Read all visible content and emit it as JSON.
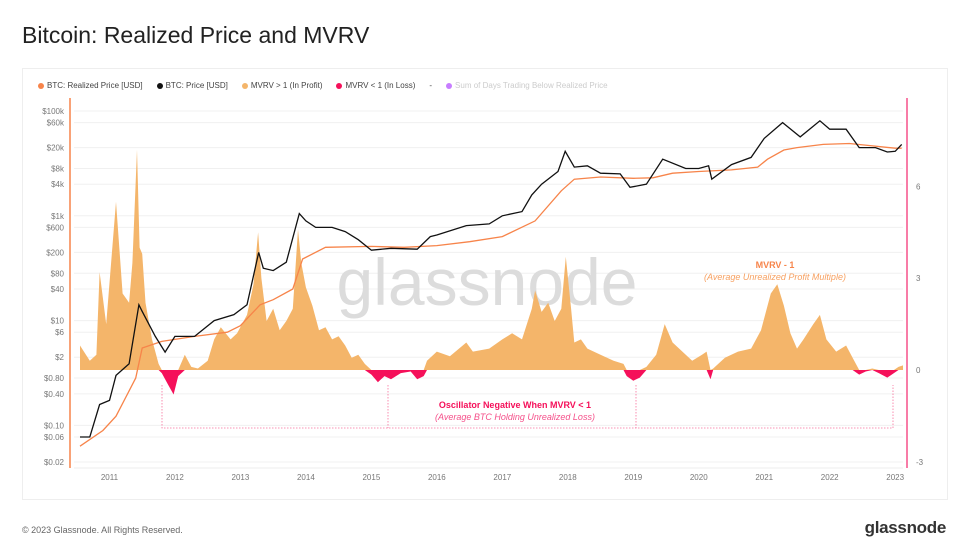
{
  "title": "Bitcoin: Realized Price and MVRV",
  "footer": "© 2023 Glassnode. All Rights Reserved.",
  "logo": "glassnode",
  "watermark": "glassnode",
  "legend": [
    {
      "label": "BTC: Realized Price [USD]",
      "color": "#f7844a"
    },
    {
      "label": "BTC: Price [USD]",
      "color": "#111111"
    },
    {
      "label": "MVRV > 1 (In Profit)",
      "color": "#f4b56a"
    },
    {
      "label": "MVRV < 1 (In Loss)",
      "color": "#f5105a"
    },
    {
      "label": "-",
      "color": ""
    },
    {
      "label": "Sum of Days Trading Below Realized Price",
      "color": "#c77dff"
    }
  ],
  "annotations": {
    "mvrv_title": "MVRV - 1",
    "mvrv_sub": "(Average Unrealized Profit Multiple)",
    "osc_title": "Oscillator Negative When MVRV < 1",
    "osc_sub": "(Average BTC Holding Unrealized Loss)"
  },
  "chart_data": {
    "type": "line",
    "title": "Bitcoin: Realized Price and MVRV",
    "x_ticks": [
      "2011",
      "2012",
      "2013",
      "2014",
      "2015",
      "2016",
      "2017",
      "2018",
      "2019",
      "2020",
      "2021",
      "2022",
      "2023"
    ],
    "xlim": [
      2010.55,
      2023.15
    ],
    "y_left": {
      "scale": "log",
      "lim": [
        0.02,
        100000
      ],
      "ticks": [
        100000,
        60000,
        20000,
        8000,
        4000,
        1000,
        600,
        200,
        80,
        40,
        10,
        6,
        2,
        0.8,
        0.4,
        0.1,
        0.06,
        0.02
      ],
      "tick_labels": [
        "$100k",
        "$60k",
        "$20k",
        "$8k",
        "$4k",
        "$1k",
        "$600",
        "$200",
        "$80",
        "$40",
        "$10",
        "$6",
        "$2",
        "$0.80",
        "$0.40",
        "$0.10",
        "$0.06",
        "$0.02"
      ]
    },
    "y_right": {
      "scale": "linear",
      "lim": [
        -3,
        9
      ],
      "ticks": [
        6,
        3,
        0,
        -3
      ],
      "tick_labels": [
        "6",
        "3",
        "0",
        "-3"
      ]
    },
    "grid": true,
    "legend_placement": "top-left",
    "price": [
      [
        2010.55,
        0.06
      ],
      [
        2010.7,
        0.06
      ],
      [
        2010.85,
        0.25
      ],
      [
        2011.0,
        0.3
      ],
      [
        2011.1,
        0.9
      ],
      [
        2011.3,
        1.5
      ],
      [
        2011.45,
        20
      ],
      [
        2011.5,
        15
      ],
      [
        2011.7,
        5
      ],
      [
        2011.85,
        2.5
      ],
      [
        2012.0,
        5
      ],
      [
        2012.3,
        5
      ],
      [
        2012.6,
        10
      ],
      [
        2012.9,
        13
      ],
      [
        2013.1,
        20
      ],
      [
        2013.28,
        200
      ],
      [
        2013.35,
        100
      ],
      [
        2013.5,
        90
      ],
      [
        2013.7,
        130
      ],
      [
        2013.9,
        1100
      ],
      [
        2014.0,
        800
      ],
      [
        2014.15,
        600
      ],
      [
        2014.4,
        600
      ],
      [
        2014.6,
        500
      ],
      [
        2014.8,
        350
      ],
      [
        2015.0,
        220
      ],
      [
        2015.3,
        240
      ],
      [
        2015.7,
        230
      ],
      [
        2015.9,
        400
      ],
      [
        2016.0,
        430
      ],
      [
        2016.45,
        650
      ],
      [
        2016.8,
        700
      ],
      [
        2017.0,
        1000
      ],
      [
        2017.3,
        1200
      ],
      [
        2017.45,
        2500
      ],
      [
        2017.6,
        4000
      ],
      [
        2017.85,
        7000
      ],
      [
        2017.96,
        17000
      ],
      [
        2018.1,
        8500
      ],
      [
        2018.3,
        9000
      ],
      [
        2018.5,
        6500
      ],
      [
        2018.8,
        6300
      ],
      [
        2018.95,
        3500
      ],
      [
        2019.2,
        4000
      ],
      [
        2019.45,
        12000
      ],
      [
        2019.8,
        8000
      ],
      [
        2020.0,
        8000
      ],
      [
        2020.15,
        9000
      ],
      [
        2020.2,
        5000
      ],
      [
        2020.5,
        9500
      ],
      [
        2020.8,
        13000
      ],
      [
        2021.0,
        30000
      ],
      [
        2021.28,
        60000
      ],
      [
        2021.55,
        32000
      ],
      [
        2021.85,
        65000
      ],
      [
        2022.0,
        45000
      ],
      [
        2022.25,
        45000
      ],
      [
        2022.45,
        20000
      ],
      [
        2022.7,
        20000
      ],
      [
        2022.88,
        16500
      ],
      [
        2023.0,
        17000
      ],
      [
        2023.1,
        23000
      ]
    ],
    "realized_price": [
      [
        2010.55,
        0.04
      ],
      [
        2010.9,
        0.08
      ],
      [
        2011.1,
        0.15
      ],
      [
        2011.4,
        0.8
      ],
      [
        2011.5,
        3
      ],
      [
        2011.8,
        4
      ],
      [
        2012.3,
        5
      ],
      [
        2012.8,
        6
      ],
      [
        2013.0,
        8
      ],
      [
        2013.3,
        20
      ],
      [
        2013.5,
        25
      ],
      [
        2013.8,
        40
      ],
      [
        2013.95,
        150
      ],
      [
        2014.3,
        250
      ],
      [
        2015.0,
        260
      ],
      [
        2015.5,
        250
      ],
      [
        2016.0,
        270
      ],
      [
        2016.5,
        320
      ],
      [
        2017.0,
        400
      ],
      [
        2017.5,
        800
      ],
      [
        2017.9,
        3000
      ],
      [
        2018.1,
        5000
      ],
      [
        2018.5,
        5500
      ],
      [
        2019.0,
        5200
      ],
      [
        2019.3,
        5300
      ],
      [
        2019.6,
        6500
      ],
      [
        2020.0,
        7000
      ],
      [
        2020.5,
        7500
      ],
      [
        2020.9,
        8500
      ],
      [
        2021.05,
        12000
      ],
      [
        2021.3,
        18000
      ],
      [
        2021.5,
        20000
      ],
      [
        2021.9,
        23000
      ],
      [
        2022.3,
        24000
      ],
      [
        2022.6,
        22000
      ],
      [
        2023.0,
        19500
      ],
      [
        2023.1,
        19500
      ]
    ],
    "mvrv_minus_1": [
      [
        2010.55,
        0.8
      ],
      [
        2010.7,
        0.3
      ],
      [
        2010.8,
        0.5
      ],
      [
        2010.85,
        3.2
      ],
      [
        2010.95,
        1.5
      ],
      [
        2011.1,
        5.5
      ],
      [
        2011.2,
        2.5
      ],
      [
        2011.3,
        2.2
      ],
      [
        2011.35,
        3.5
      ],
      [
        2011.42,
        7.2
      ],
      [
        2011.46,
        4
      ],
      [
        2011.5,
        3.8
      ],
      [
        2011.55,
        2.2
      ],
      [
        2011.65,
        1.0
      ],
      [
        2011.75,
        0.2
      ],
      [
        2011.8,
        -0.1
      ],
      [
        2011.9,
        -0.5
      ],
      [
        2011.98,
        -0.8
      ],
      [
        2012.05,
        -0.2
      ],
      [
        2012.15,
        0.5
      ],
      [
        2012.25,
        0.1
      ],
      [
        2012.35,
        0.05
      ],
      [
        2012.5,
        0.3
      ],
      [
        2012.6,
        1.0
      ],
      [
        2012.7,
        1.4
      ],
      [
        2012.85,
        1.0
      ],
      [
        2012.95,
        1.2
      ],
      [
        2013.1,
        1.8
      ],
      [
        2013.2,
        2.8
      ],
      [
        2013.27,
        4.5
      ],
      [
        2013.32,
        3.0
      ],
      [
        2013.4,
        1.6
      ],
      [
        2013.5,
        2.0
      ],
      [
        2013.6,
        1.3
      ],
      [
        2013.7,
        1.6
      ],
      [
        2013.8,
        2.0
      ],
      [
        2013.88,
        4.6
      ],
      [
        2013.93,
        3.5
      ],
      [
        2014.0,
        2.7
      ],
      [
        2014.1,
        2.1
      ],
      [
        2014.2,
        1.3
      ],
      [
        2014.3,
        1.4
      ],
      [
        2014.4,
        1.0
      ],
      [
        2014.5,
        1.1
      ],
      [
        2014.6,
        0.8
      ],
      [
        2014.7,
        0.4
      ],
      [
        2014.8,
        0.5
      ],
      [
        2014.9,
        0.2
      ],
      [
        2015.0,
        -0.15
      ],
      [
        2015.1,
        -0.4
      ],
      [
        2015.2,
        -0.2
      ],
      [
        2015.3,
        -0.3
      ],
      [
        2015.45,
        -0.1
      ],
      [
        2015.6,
        -0.05
      ],
      [
        2015.7,
        -0.3
      ],
      [
        2015.8,
        -0.2
      ],
      [
        2015.85,
        0.3
      ],
      [
        2016.0,
        0.6
      ],
      [
        2016.2,
        0.45
      ],
      [
        2016.45,
        0.9
      ],
      [
        2016.55,
        0.6
      ],
      [
        2016.8,
        0.7
      ],
      [
        2017.0,
        1.0
      ],
      [
        2017.15,
        1.2
      ],
      [
        2017.3,
        1.0
      ],
      [
        2017.45,
        2.0
      ],
      [
        2017.5,
        2.6
      ],
      [
        2017.6,
        1.9
      ],
      [
        2017.7,
        2.2
      ],
      [
        2017.8,
        1.6
      ],
      [
        2017.9,
        2.0
      ],
      [
        2017.97,
        3.7
      ],
      [
        2018.05,
        2.0
      ],
      [
        2018.1,
        0.9
      ],
      [
        2018.2,
        1.0
      ],
      [
        2018.3,
        0.7
      ],
      [
        2018.5,
        0.5
      ],
      [
        2018.7,
        0.3
      ],
      [
        2018.85,
        0.2
      ],
      [
        2018.9,
        -0.2
      ],
      [
        2019.0,
        -0.35
      ],
      [
        2019.1,
        -0.25
      ],
      [
        2019.2,
        0.1
      ],
      [
        2019.35,
        0.5
      ],
      [
        2019.48,
        1.5
      ],
      [
        2019.6,
        0.9
      ],
      [
        2019.75,
        0.6
      ],
      [
        2019.9,
        0.3
      ],
      [
        2020.05,
        0.5
      ],
      [
        2020.12,
        0.6
      ],
      [
        2020.18,
        -0.3
      ],
      [
        2020.22,
        0.05
      ],
      [
        2020.4,
        0.4
      ],
      [
        2020.6,
        0.6
      ],
      [
        2020.8,
        0.7
      ],
      [
        2020.95,
        1.3
      ],
      [
        2021.1,
        2.5
      ],
      [
        2021.2,
        2.8
      ],
      [
        2021.3,
        2.1
      ],
      [
        2021.4,
        1.2
      ],
      [
        2021.5,
        0.7
      ],
      [
        2021.6,
        1.0
      ],
      [
        2021.75,
        1.5
      ],
      [
        2021.85,
        1.8
      ],
      [
        2021.95,
        1.0
      ],
      [
        2022.1,
        0.6
      ],
      [
        2022.25,
        0.8
      ],
      [
        2022.35,
        0.4
      ],
      [
        2022.45,
        -0.15
      ],
      [
        2022.55,
        -0.05
      ],
      [
        2022.65,
        0.05
      ],
      [
        2022.75,
        -0.1
      ],
      [
        2022.88,
        -0.25
      ],
      [
        2022.98,
        -0.1
      ],
      [
        2023.05,
        0.1
      ],
      [
        2023.12,
        0.15
      ]
    ]
  }
}
